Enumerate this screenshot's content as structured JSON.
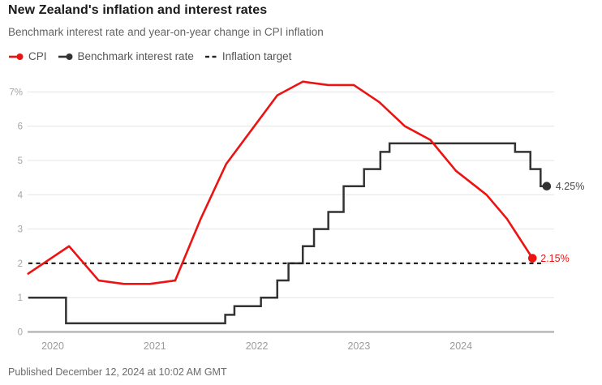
{
  "header": {
    "title": "New Zealand's inflation and interest rates",
    "subtitle": "Benchmark interest rate and year-on-year change in CPI inflation"
  },
  "legend": {
    "items": [
      {
        "label": "CPI",
        "color": "#ec1313",
        "marker": "line-dot"
      },
      {
        "label": "Benchmark interest rate",
        "color": "#333333",
        "marker": "line-dot"
      },
      {
        "label": "Inflation target",
        "color": "#232323",
        "marker": "dashes"
      }
    ]
  },
  "footer": {
    "published": "Published December 12, 2024 at 10:02 AM GMT"
  },
  "chart_data": {
    "type": "line",
    "title": "New Zealand's inflation and interest rates",
    "subtitle": "Benchmark interest rate and year-on-year change in CPI inflation",
    "xlabel": "",
    "ylabel": "",
    "grid": true,
    "legend_position": "top",
    "xlim": [
      2019.76,
      2024.95
    ],
    "ylim": [
      0,
      7.5
    ],
    "x_ticks": [
      {
        "t": 2020,
        "label": "2020"
      },
      {
        "t": 2021,
        "label": "2021"
      },
      {
        "t": 2022,
        "label": "2022"
      },
      {
        "t": 2023,
        "label": "2023"
      },
      {
        "t": 2024,
        "label": "2024"
      }
    ],
    "y_ticks": [
      {
        "v": 0,
        "label": "0"
      },
      {
        "v": 1,
        "label": "1"
      },
      {
        "v": 2,
        "label": "2"
      },
      {
        "v": 3,
        "label": "3"
      },
      {
        "v": 4,
        "label": "4"
      },
      {
        "v": 5,
        "label": "5"
      },
      {
        "v": 6,
        "label": "6"
      },
      {
        "v": 7,
        "label": "7%"
      }
    ],
    "series": [
      {
        "name": "CPI",
        "type": "line",
        "color": "#ec1313",
        "unit": "%",
        "points": [
          [
            2019.76,
            1.7
          ],
          [
            2020.16,
            2.5
          ],
          [
            2020.45,
            1.5
          ],
          [
            2020.7,
            1.4
          ],
          [
            2020.95,
            1.4
          ],
          [
            2021.2,
            1.5
          ],
          [
            2021.45,
            3.3
          ],
          [
            2021.7,
            4.9
          ],
          [
            2021.95,
            5.9
          ],
          [
            2022.2,
            6.9
          ],
          [
            2022.45,
            7.3
          ],
          [
            2022.7,
            7.2
          ],
          [
            2022.95,
            7.2
          ],
          [
            2023.2,
            6.7
          ],
          [
            2023.45,
            6.0
          ],
          [
            2023.7,
            5.6
          ],
          [
            2023.95,
            4.7
          ],
          [
            2024.25,
            4.0
          ],
          [
            2024.45,
            3.3
          ],
          [
            2024.7,
            2.15
          ]
        ],
        "end_label": "2.15%"
      },
      {
        "name": "Benchmark interest rate",
        "type": "step",
        "color": "#333333",
        "unit": "%",
        "points": [
          [
            2019.76,
            1.0
          ],
          [
            2020.13,
            0.25
          ],
          [
            2021.69,
            0.5
          ],
          [
            2021.78,
            0.75
          ],
          [
            2022.04,
            1.0
          ],
          [
            2022.2,
            1.5
          ],
          [
            2022.31,
            2.0
          ],
          [
            2022.45,
            2.5
          ],
          [
            2022.56,
            3.0
          ],
          [
            2022.7,
            3.5
          ],
          [
            2022.85,
            4.25
          ],
          [
            2023.05,
            4.75
          ],
          [
            2023.21,
            5.25
          ],
          [
            2023.3,
            5.5
          ],
          [
            2024.53,
            5.25
          ],
          [
            2024.68,
            4.75
          ],
          [
            2024.78,
            4.25
          ]
        ],
        "end_t": 2024.84,
        "end_label": "4.25%"
      },
      {
        "name": "Inflation target",
        "type": "reference-line",
        "color": "#232323",
        "value": 2
      }
    ],
    "annotations": {
      "cpi_end_label": "2.15%",
      "ocr_end_label": "4.25%"
    }
  }
}
